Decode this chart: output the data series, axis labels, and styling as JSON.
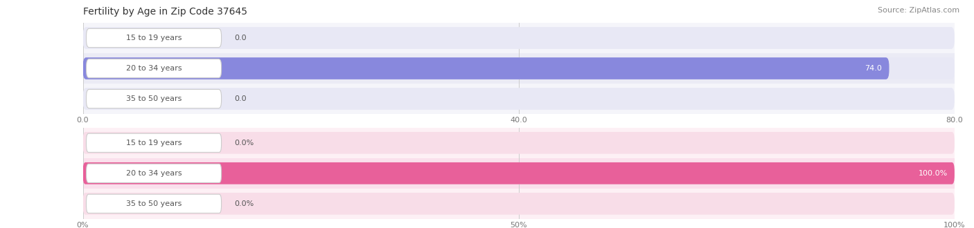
{
  "title": "Fertility by Age in Zip Code 37645",
  "source": "Source: ZipAtlas.com",
  "background_color": "#ffffff",
  "top_chart": {
    "categories": [
      "15 to 19 years",
      "20 to 34 years",
      "35 to 50 years"
    ],
    "values": [
      0.0,
      74.0,
      0.0
    ],
    "bar_color": "#8888dd",
    "bar_bg_color": "#e8e8f5",
    "row_bg_even": "#f5f5fa",
    "row_bg_odd": "#ebebf5",
    "xlim": [
      0,
      80.0
    ],
    "xticks": [
      0.0,
      40.0,
      80.0
    ],
    "value_label_suffix": ""
  },
  "bottom_chart": {
    "categories": [
      "15 to 19 years",
      "20 to 34 years",
      "35 to 50 years"
    ],
    "values": [
      0.0,
      100.0,
      0.0
    ],
    "bar_color": "#e8609a",
    "bar_bg_color": "#f8dde8",
    "row_bg_even": "#fdf0f5",
    "row_bg_odd": "#fae0ec",
    "xlim": [
      0,
      100.0
    ],
    "xticks": [
      0.0,
      50.0,
      100.0
    ],
    "value_label_suffix": "%"
  },
  "label_color": "#555555",
  "value_color_inside": "#ffffff",
  "value_color_outside": "#555555",
  "title_fontsize": 10,
  "source_fontsize": 8,
  "label_fontsize": 8,
  "value_fontsize": 8,
  "tick_fontsize": 8
}
